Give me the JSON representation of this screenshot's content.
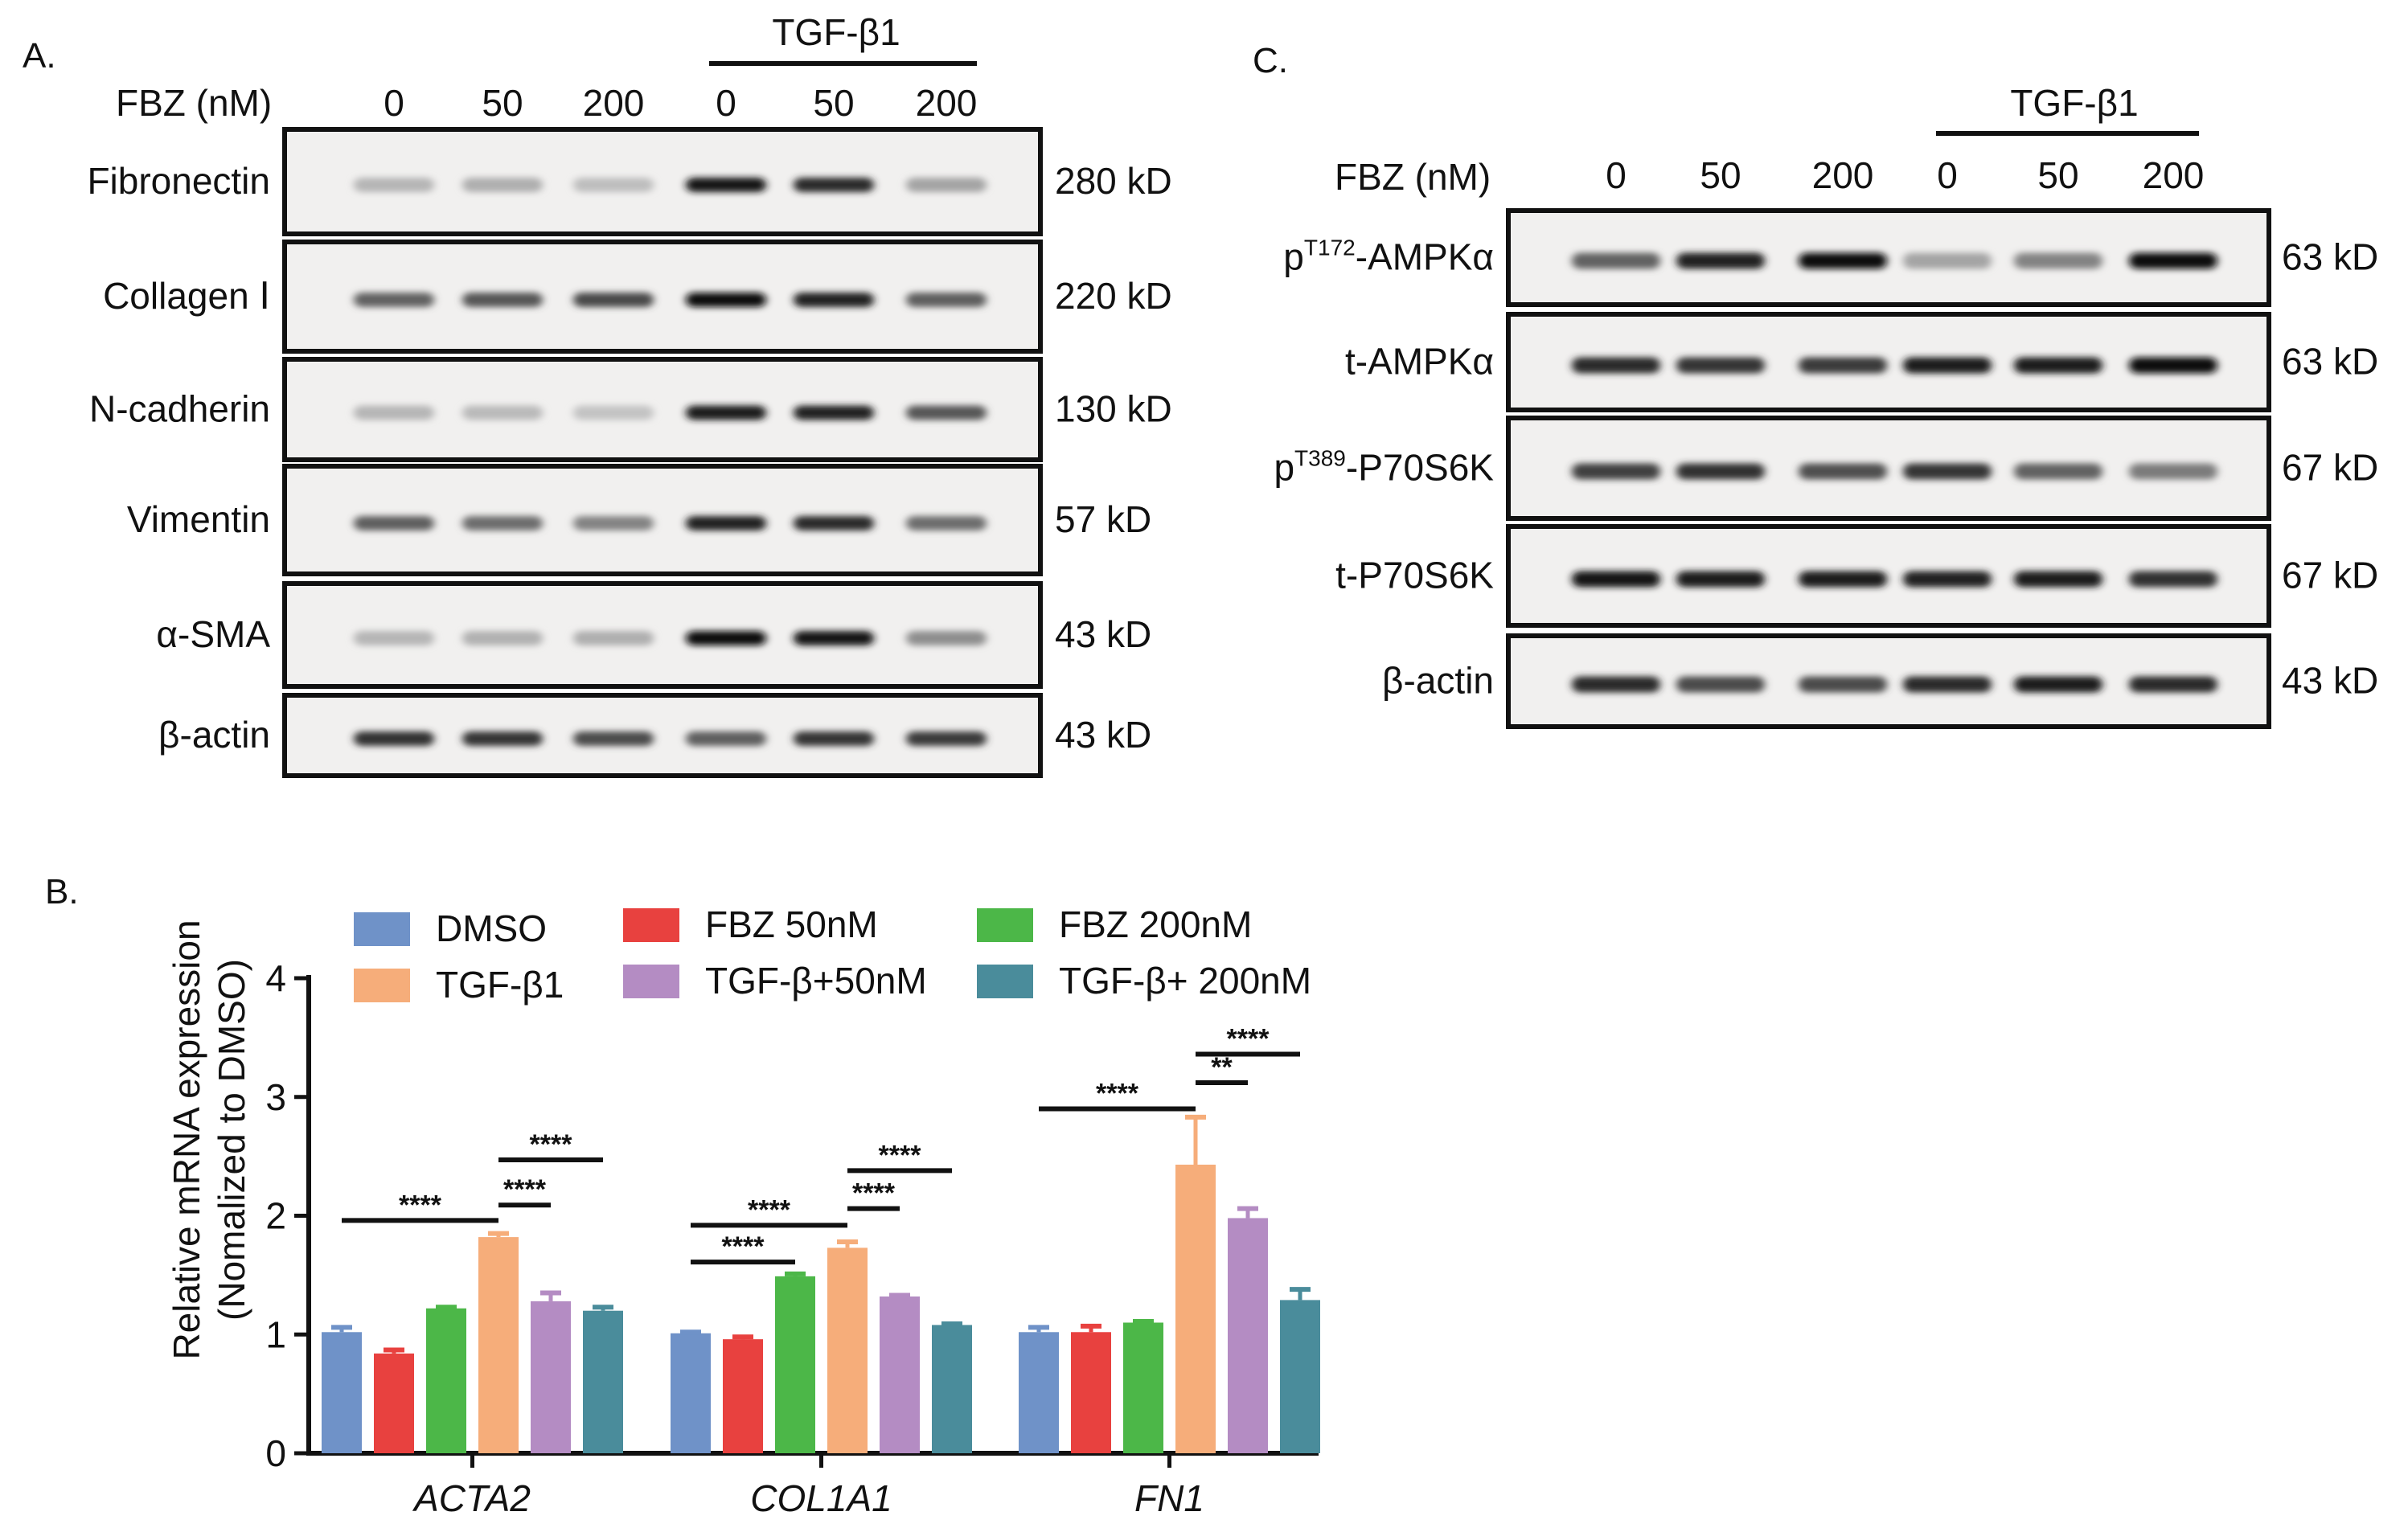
{
  "panel_a": {
    "label": "A.",
    "dose_header": "FBZ (nM)",
    "doses": [
      "0",
      "50",
      "200",
      "0",
      "50",
      "200"
    ],
    "treatment": "TGF-β1",
    "blots": [
      {
        "protein": "Fibronectin",
        "size": "280 kD",
        "intensity": [
          0.22,
          0.25,
          0.18,
          0.95,
          0.85,
          0.3
        ]
      },
      {
        "protein": "Collagen Ⅰ",
        "size": "220 kD",
        "intensity": [
          0.6,
          0.65,
          0.72,
          1.0,
          0.88,
          0.62
        ]
      },
      {
        "protein": "N-cadherin",
        "size": "130 kD",
        "intensity": [
          0.22,
          0.2,
          0.16,
          0.92,
          0.88,
          0.65
        ]
      },
      {
        "protein": "Vimentin",
        "size": "57 kD",
        "intensity": [
          0.62,
          0.55,
          0.45,
          0.9,
          0.85,
          0.55
        ]
      },
      {
        "protein": "α-SMA",
        "size": "43 kD",
        "intensity": [
          0.22,
          0.24,
          0.25,
          1.0,
          0.95,
          0.4
        ]
      },
      {
        "protein": "β-actin",
        "size": "43 kD",
        "intensity": [
          0.82,
          0.8,
          0.7,
          0.62,
          0.8,
          0.78
        ]
      }
    ]
  },
  "panel_c": {
    "label": "C.",
    "dose_header": "FBZ (nM)",
    "doses": [
      "0",
      "50",
      "200",
      "0",
      "50",
      "200"
    ],
    "treatment": "TGF-β1",
    "blots": [
      {
        "protein_prefix": "p",
        "protein_sup": "T172",
        "protein_suffix": "-AMPKα",
        "size": "63 kD",
        "intensity": [
          0.6,
          0.9,
          1.0,
          0.3,
          0.45,
          1.0
        ]
      },
      {
        "protein_prefix": "t-AMPKα",
        "protein_sup": "",
        "protein_suffix": "",
        "size": "63 kD",
        "intensity": [
          0.85,
          0.8,
          0.78,
          0.92,
          0.92,
          0.98
        ]
      },
      {
        "protein_prefix": "p",
        "protein_sup": "T389",
        "protein_suffix": "-P70S6K",
        "size": "67 kD",
        "intensity": [
          0.75,
          0.82,
          0.68,
          0.8,
          0.6,
          0.48
        ]
      },
      {
        "protein_prefix": "t-P70S6K",
        "protein_sup": "",
        "protein_suffix": "",
        "size": "67 kD",
        "intensity": [
          0.95,
          0.92,
          0.92,
          0.88,
          0.92,
          0.82
        ]
      },
      {
        "protein_prefix": "β-actin",
        "protein_sup": "",
        "protein_suffix": "",
        "size": "43 kD",
        "intensity": [
          0.85,
          0.7,
          0.7,
          0.85,
          0.92,
          0.85
        ]
      }
    ]
  },
  "chart_data": {
    "type": "bar",
    "panel_label": "B.",
    "ylabel_line1": "Relative mRNA expression",
    "ylabel_line2": "(Nomalized to DMSO)",
    "ylim": [
      0,
      4
    ],
    "yticks": [
      "0",
      "1",
      "2",
      "3",
      "4"
    ],
    "categories": [
      "ACTA2",
      "COL1A1",
      "FN1"
    ],
    "series": [
      {
        "name": "DMSO",
        "color": "#6f92c8",
        "values": [
          1.02,
          1.01,
          1.02
        ],
        "errors": [
          0.04,
          0.01,
          0.04
        ]
      },
      {
        "name": "FBZ 50nM",
        "color": "#e8413f",
        "values": [
          0.84,
          0.96,
          1.02
        ],
        "errors": [
          0.03,
          0.02,
          0.05
        ]
      },
      {
        "name": "FBZ 200nM",
        "color": "#4cb748",
        "values": [
          1.22,
          1.49,
          1.1
        ],
        "errors": [
          0.01,
          0.02,
          0.01
        ]
      },
      {
        "name": "TGF-β1",
        "color": "#f6ad7a",
        "values": [
          1.82,
          1.73,
          2.43
        ],
        "errors": [
          0.03,
          0.05,
          0.4
        ]
      },
      {
        "name": "TGF-β+50nM",
        "color": "#b48cc3",
        "values": [
          1.28,
          1.32,
          1.98
        ],
        "errors": [
          0.07,
          0.01,
          0.08
        ]
      },
      {
        "name": "TGF-β+ 200nM",
        "color": "#4a8c9b",
        "values": [
          1.2,
          1.08,
          1.29
        ],
        "errors": [
          0.03,
          0.01,
          0.09
        ]
      }
    ],
    "significance": [
      {
        "category": 0,
        "from": 0,
        "to": 3,
        "y": 1.96,
        "label": "****"
      },
      {
        "category": 0,
        "from": 3,
        "to": 4,
        "y": 2.09,
        "label": "****"
      },
      {
        "category": 0,
        "from": 3,
        "to": 5,
        "y": 2.47,
        "label": "****"
      },
      {
        "category": 1,
        "from": 0,
        "to": 2,
        "y": 1.61,
        "label": "****"
      },
      {
        "category": 1,
        "from": 0,
        "to": 3,
        "y": 1.92,
        "label": "****"
      },
      {
        "category": 1,
        "from": 3,
        "to": 4,
        "y": 2.06,
        "label": "****"
      },
      {
        "category": 1,
        "from": 3,
        "to": 5,
        "y": 2.38,
        "label": "****"
      },
      {
        "category": 2,
        "from": 0,
        "to": 3,
        "y": 2.9,
        "label": "****"
      },
      {
        "category": 2,
        "from": 3,
        "to": 4,
        "y": 3.12,
        "label": "**"
      },
      {
        "category": 2,
        "from": 3,
        "to": 5,
        "y": 3.36,
        "label": "****"
      }
    ]
  }
}
